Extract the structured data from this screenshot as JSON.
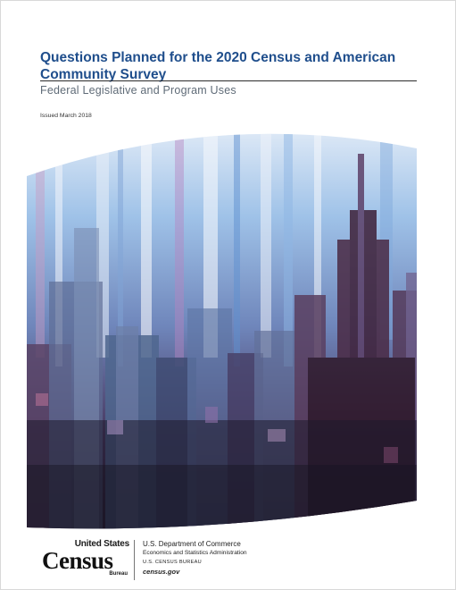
{
  "cover": {
    "title": "Questions Planned for the 2020 Census and American Community Survey",
    "subtitle": "Federal Legislative and Program Uses",
    "issued": "Issued March 2018"
  },
  "cover_image": {
    "description_icon": "city-skyline-abstract-image",
    "colors": {
      "top_blue": "#6fa6dc",
      "mid_purple": "#5b4d7a",
      "deep_maroon": "#2e1424",
      "pink_streak": "#b27aa5"
    }
  },
  "footer": {
    "logo": {
      "line1": "United States",
      "line2": "Census",
      "line3": "Bureau"
    },
    "dept": "U.S. Department of Commerce",
    "admin": "Economics and Statistics Administration",
    "bureau": "U.S. CENSUS BUREAU",
    "url": "census.gov"
  }
}
